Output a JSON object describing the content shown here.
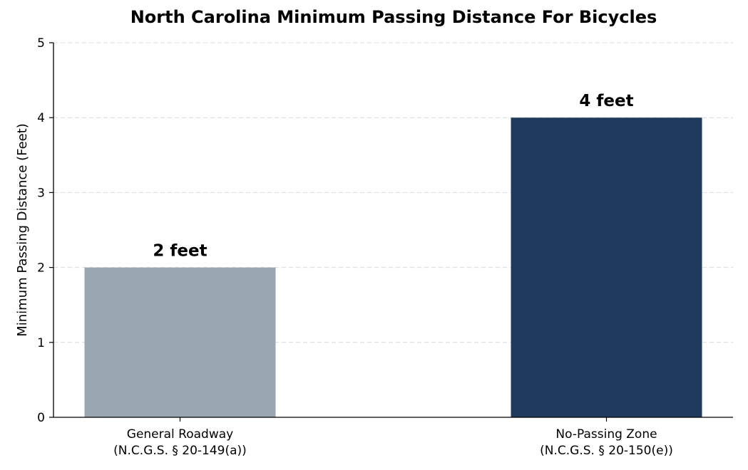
{
  "chart_data": {
    "type": "bar",
    "title": "North Carolina Minimum Passing Distance For Bicycles",
    "xlabel": "",
    "ylabel": "Minimum Passing Distance (Feet)",
    "ylim": [
      0,
      5
    ],
    "yticks": [
      0,
      1,
      2,
      3,
      4,
      5
    ],
    "grid": "y-dashed",
    "categories": [
      [
        "General Roadway",
        "(N.C.G.S. § 20-149(a))"
      ],
      [
        "No-Passing Zone",
        "(N.C.G.S. § 20-150(e))"
      ]
    ],
    "values": [
      2,
      4
    ],
    "data_labels": [
      "2 feet",
      "4 feet"
    ],
    "colors": [
      "#9aa6b0",
      "#1f3a5c"
    ]
  }
}
